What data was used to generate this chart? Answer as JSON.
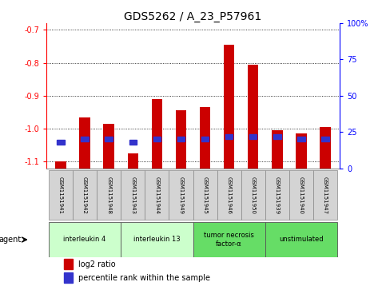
{
  "title": "GDS5262 / A_23_P57961",
  "samples": [
    "GSM1151941",
    "GSM1151942",
    "GSM1151948",
    "GSM1151943",
    "GSM1151944",
    "GSM1151949",
    "GSM1151945",
    "GSM1151946",
    "GSM1151950",
    "GSM1151939",
    "GSM1151940",
    "GSM1151947"
  ],
  "log2_ratio": [
    -1.1,
    -0.965,
    -0.985,
    -1.075,
    -0.91,
    -0.945,
    -0.935,
    -0.745,
    -0.805,
    -1.005,
    -1.015,
    -0.995
  ],
  "percentile_rank_right": [
    18,
    20,
    20,
    18,
    20,
    20,
    20,
    22,
    22,
    22,
    20,
    20
  ],
  "ylim_left": [
    -1.12,
    -0.68
  ],
  "ylim_right": [
    0,
    100
  ],
  "yticks_left": [
    -1.1,
    -1.0,
    -0.9,
    -0.8,
    -0.7
  ],
  "yticks_right": [
    0,
    25,
    50,
    75,
    100
  ],
  "ytick_labels_right": [
    "0",
    "25",
    "50",
    "75",
    "100%"
  ],
  "bar_color": "#cc0000",
  "blue_color": "#3333cc",
  "agent_groups": [
    {
      "label": "interleukin 4",
      "start": 0,
      "end": 3,
      "color": "#ccffcc"
    },
    {
      "label": "interleukin 13",
      "start": 3,
      "end": 6,
      "color": "#ccffcc"
    },
    {
      "label": "tumor necrosis\nfactor-α",
      "start": 6,
      "end": 9,
      "color": "#66dd66"
    },
    {
      "label": "unstimulated",
      "start": 9,
      "end": 12,
      "color": "#66dd66"
    }
  ],
  "bar_width": 0.45,
  "agent_label": "agent",
  "background_color": "#ffffff",
  "plot_bg_color": "#ffffff",
  "title_fontsize": 10,
  "tick_fontsize": 7,
  "sample_cell_color": "#d4d4d4",
  "sample_cell_edge": "#888888"
}
